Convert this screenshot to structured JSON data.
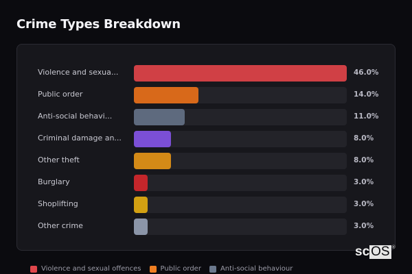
{
  "title": "Crime Types Breakdown",
  "rows": [
    {
      "label": "Violence and sexua...",
      "value": "46.0%",
      "color": "#d04045",
      "pct": 100
    },
    {
      "label": "Public order",
      "value": "14.0%",
      "color": "#d8691a",
      "pct": 30.43
    },
    {
      "label": "Anti-social behavi...",
      "value": "11.0%",
      "color": "#5e6a7e",
      "pct": 23.91
    },
    {
      "label": "Criminal damage an...",
      "value": "8.0%",
      "color": "#7b4fd6",
      "pct": 17.39
    },
    {
      "label": "Other theft",
      "value": "8.0%",
      "color": "#d48a17",
      "pct": 17.39
    },
    {
      "label": "Burglary",
      "value": "3.0%",
      "color": "#c4262b",
      "pct": 6.52
    },
    {
      "label": "Shoplifting",
      "value": "3.0%",
      "color": "#d2a012",
      "pct": 6.52
    },
    {
      "label": "Other crime",
      "value": "3.0%",
      "color": "#8b95a8",
      "pct": 6.52
    }
  ],
  "legend": [
    {
      "label": "Violence and sexual offences",
      "color": "#e0474c"
    },
    {
      "label": "Public order",
      "color": "#f07f22"
    },
    {
      "label": "Anti-social behaviour",
      "color": "#6b788d"
    }
  ],
  "watermark": {
    "sc": "sc",
    "os": "OS",
    "reg": "®"
  },
  "chart_data": {
    "type": "bar",
    "orientation": "horizontal",
    "title": "Crime Types Breakdown",
    "categories": [
      "Violence and sexual offences",
      "Public order",
      "Anti-social behaviour",
      "Criminal damage and arson",
      "Other theft",
      "Burglary",
      "Shoplifting",
      "Other crime"
    ],
    "display_labels": [
      "Violence and sexua...",
      "Public order",
      "Anti-social behavi...",
      "Criminal damage an...",
      "Other theft",
      "Burglary",
      "Shoplifting",
      "Other crime"
    ],
    "values": [
      46.0,
      14.0,
      11.0,
      8.0,
      8.0,
      3.0,
      3.0,
      3.0
    ],
    "value_labels": [
      "46.0%",
      "14.0%",
      "11.0%",
      "8.0%",
      "8.0%",
      "3.0%",
      "3.0%",
      "3.0%"
    ],
    "colors": [
      "#d04045",
      "#d8691a",
      "#5e6a7e",
      "#7b4fd6",
      "#d48a17",
      "#c4262b",
      "#d2a012",
      "#8b95a8"
    ],
    "xlabel": "",
    "ylabel": "",
    "unit": "%",
    "legend": [
      "Violence and sexual offences",
      "Public order",
      "Anti-social behaviour"
    ],
    "legend_position": "bottom",
    "grid": false
  }
}
